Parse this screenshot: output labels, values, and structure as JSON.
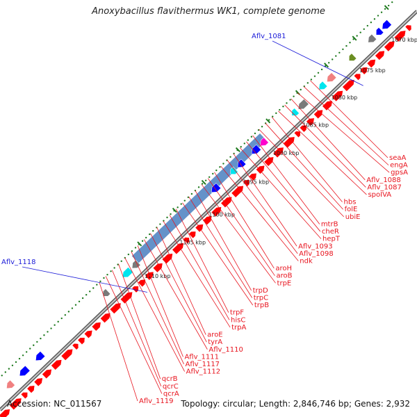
{
  "title": "Anoxybacillus flavithermus WK1, complete genome",
  "footer": {
    "accession": "Accession: NC_011567",
    "summary": "Topology: circular; Length: 2,846,746 bp; Genes: 2,932"
  },
  "colors": {
    "backbone": "#8a8a8a",
    "forward_gene": "#ff0000",
    "reverse_gene": "#0000ff",
    "operon_band": "#4a7fc0",
    "tick": "#1f7a1f",
    "label_red": "#e8141e",
    "label_blue": "#1a1ad8",
    "gray_gene": "#7a7a7a",
    "cyan_gene": "#00e5ee",
    "pink_gene": "#f08080",
    "olive_gene": "#6b8e23",
    "magenta_gene": "#ff00cc"
  },
  "scale": {
    "unit": "kbp",
    "ticks": [
      {
        "kbp": 1070,
        "label": "1070 kbp"
      },
      {
        "kbp": 1075,
        "label": "1075 kbp"
      },
      {
        "kbp": 1080,
        "label": "1080 kbp"
      },
      {
        "kbp": 1085,
        "label": "1085 kbp"
      },
      {
        "kbp": 1090,
        "label": "1090 kbp"
      },
      {
        "kbp": 1095,
        "label": "1095 kbp"
      },
      {
        "kbp": 1100,
        "label": "1100 kbp"
      },
      {
        "kbp": 1105,
        "label": "1105 kbp"
      },
      {
        "kbp": 1110,
        "label": "1110 kbp"
      }
    ]
  },
  "gene_labels": [
    {
      "text": "Aflv_1081",
      "color": "blue"
    },
    {
      "text": "Aflv_1118",
      "color": "blue"
    },
    {
      "text": "seaA",
      "color": "red"
    },
    {
      "text": "engA",
      "color": "red"
    },
    {
      "text": "gpsA",
      "color": "red"
    },
    {
      "text": "Aflv_1088",
      "color": "red"
    },
    {
      "text": "Aflv_1087",
      "color": "red"
    },
    {
      "text": "spoIVA",
      "color": "red"
    },
    {
      "text": "hbs",
      "color": "red"
    },
    {
      "text": "folE",
      "color": "red"
    },
    {
      "text": "ubiE",
      "color": "red"
    },
    {
      "text": "mtrB",
      "color": "red"
    },
    {
      "text": "cheR",
      "color": "red"
    },
    {
      "text": "hepT",
      "color": "red"
    },
    {
      "text": "Aflv_1093",
      "color": "red"
    },
    {
      "text": "Aflv_1098",
      "color": "red"
    },
    {
      "text": "ndk",
      "color": "red"
    },
    {
      "text": "aroH",
      "color": "red"
    },
    {
      "text": "aroB",
      "color": "red"
    },
    {
      "text": "trpE",
      "color": "red"
    },
    {
      "text": "trpD",
      "color": "red"
    },
    {
      "text": "trpC",
      "color": "red"
    },
    {
      "text": "trpB",
      "color": "red"
    },
    {
      "text": "trpF",
      "color": "red"
    },
    {
      "text": "hisC",
      "color": "red"
    },
    {
      "text": "trpA",
      "color": "red"
    },
    {
      "text": "aroE",
      "color": "red"
    },
    {
      "text": "tyrA",
      "color": "red"
    },
    {
      "text": "Aflv_1110",
      "color": "red"
    },
    {
      "text": "Aflv_1111",
      "color": "red"
    },
    {
      "text": "Aflv_1117",
      "color": "red"
    },
    {
      "text": "Aflv_1112",
      "color": "red"
    },
    {
      "text": "qcrB",
      "color": "red"
    },
    {
      "text": "qcrC",
      "color": "red"
    },
    {
      "text": "qcrA",
      "color": "red"
    },
    {
      "text": "Aflv_1119",
      "color": "red"
    }
  ]
}
